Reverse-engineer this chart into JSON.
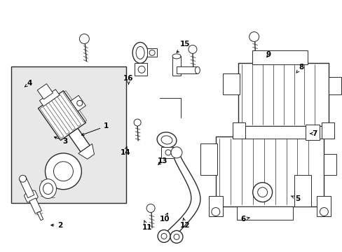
{
  "background_color": "#ffffff",
  "line_color": "#2a2a2a",
  "label_color": "#000000",
  "fig_width": 4.89,
  "fig_height": 3.6,
  "dpi": 100,
  "label_positions": {
    "1": [
      0.31,
      0.5,
      0.23,
      0.54
    ],
    "2": [
      0.175,
      0.895,
      0.14,
      0.895
    ],
    "3": [
      0.19,
      0.56,
      0.15,
      0.54
    ],
    "4": [
      0.085,
      0.33,
      0.07,
      0.345
    ],
    "5": [
      0.87,
      0.79,
      0.845,
      0.775
    ],
    "6": [
      0.71,
      0.87,
      0.73,
      0.865
    ],
    "7": [
      0.92,
      0.53,
      0.905,
      0.53
    ],
    "8": [
      0.88,
      0.265,
      0.865,
      0.29
    ],
    "9": [
      0.785,
      0.215,
      0.775,
      0.235
    ],
    "10": [
      0.48,
      0.87,
      0.49,
      0.845
    ],
    "11": [
      0.43,
      0.905,
      0.42,
      0.875
    ],
    "12": [
      0.54,
      0.895,
      0.535,
      0.865
    ],
    "13": [
      0.475,
      0.64,
      0.455,
      0.66
    ],
    "14": [
      0.365,
      0.605,
      0.37,
      0.58
    ],
    "15": [
      0.54,
      0.175,
      0.51,
      0.215
    ],
    "16": [
      0.375,
      0.31,
      0.375,
      0.335
    ]
  }
}
